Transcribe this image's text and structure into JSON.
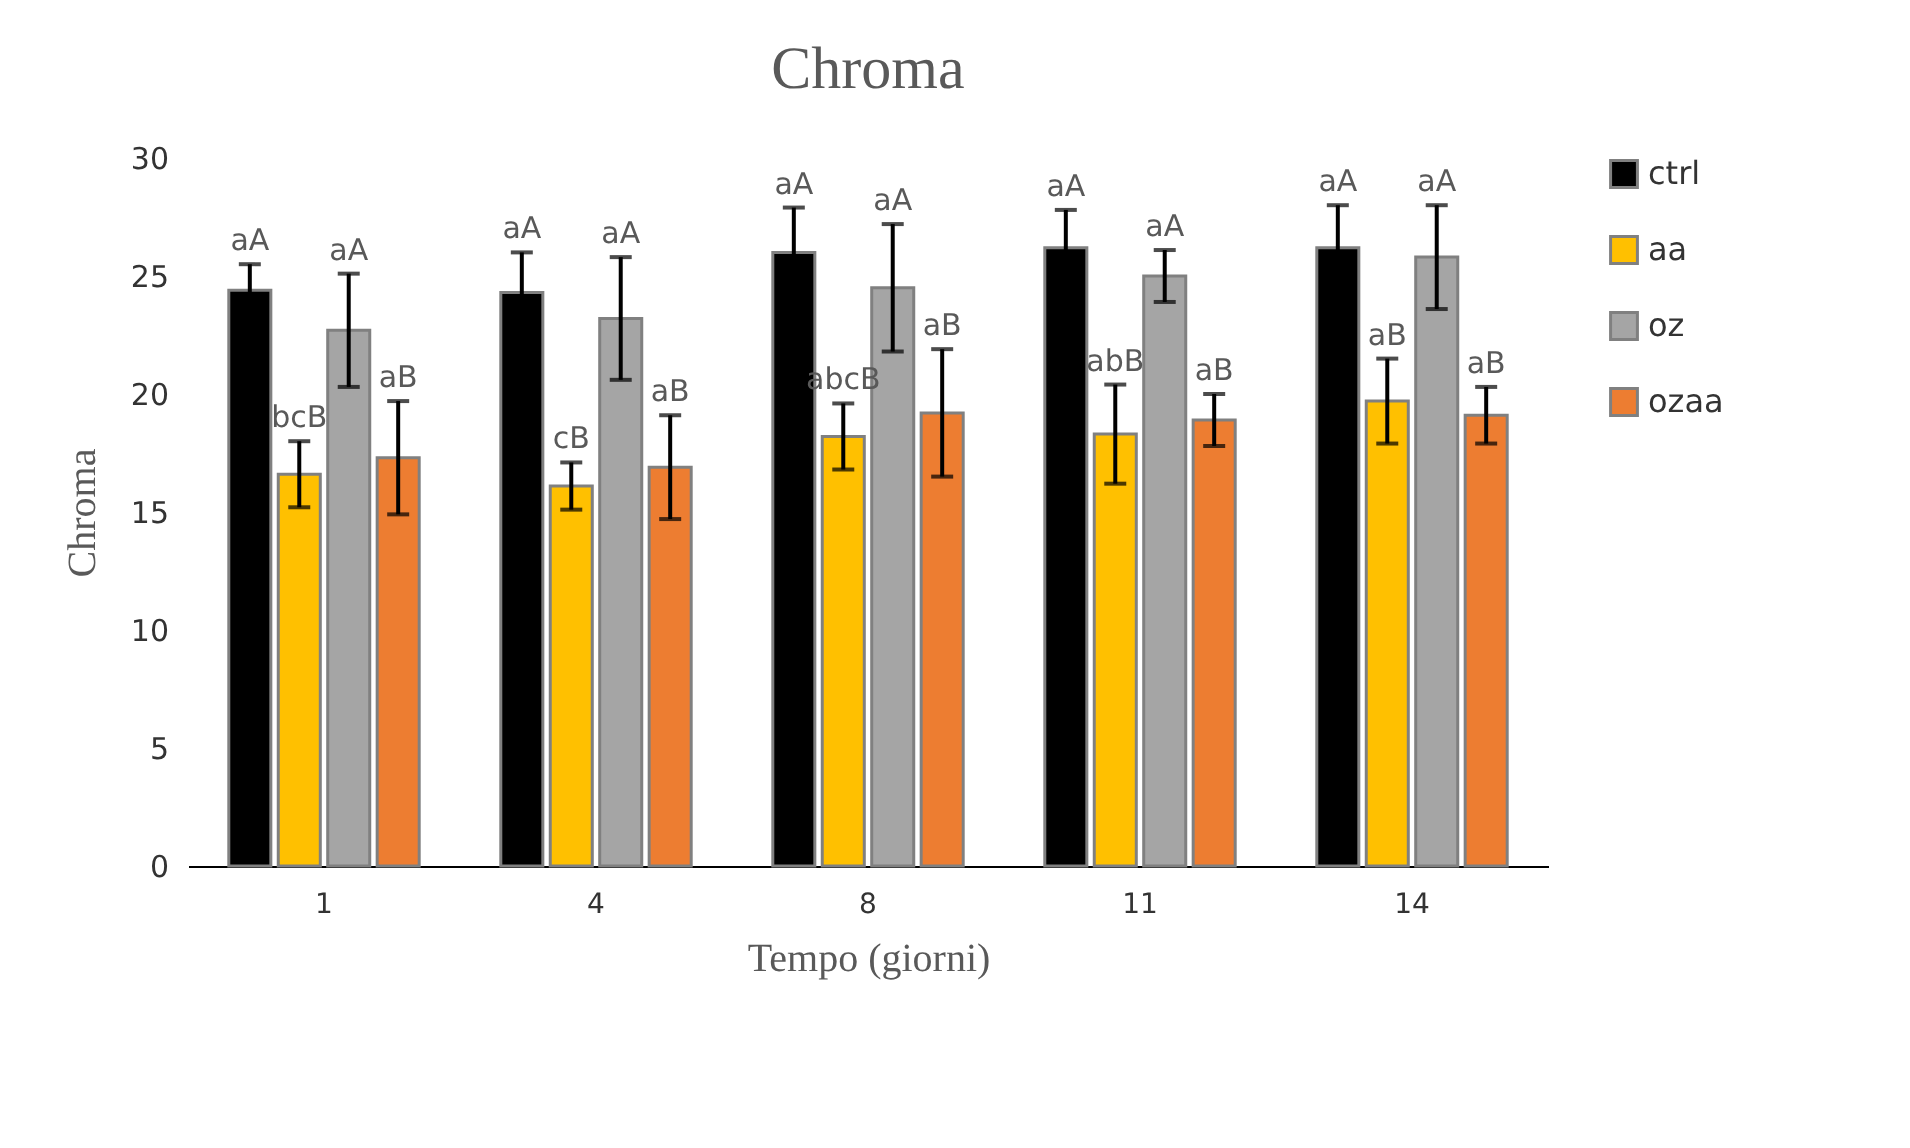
{
  "chart_data": {
    "type": "bar",
    "title": "Chroma",
    "xlabel": "Tempo (giorni)",
    "ylabel": "Chroma",
    "categories": [
      "1",
      "4",
      "8",
      "11",
      "14"
    ],
    "series": [
      {
        "name": "ctrl",
        "color": "#000000",
        "values": [
          24.4,
          24.3,
          26.0,
          26.2,
          26.2
        ],
        "errors": [
          1.1,
          1.7,
          1.9,
          1.6,
          1.8
        ],
        "value_labels": [
          "aA",
          "aA",
          "aA",
          "aA",
          "aA"
        ]
      },
      {
        "name": "aa",
        "color": "#ffc000",
        "values": [
          16.6,
          16.1,
          18.2,
          18.3,
          19.7
        ],
        "errors": [
          1.4,
          1.0,
          1.4,
          2.1,
          1.8
        ],
        "value_labels": [
          "bcB",
          "cB",
          "abcB",
          "abB",
          "aB"
        ]
      },
      {
        "name": "oz",
        "color": "#a5a5a5",
        "values": [
          22.7,
          23.2,
          24.5,
          25.0,
          25.8
        ],
        "errors": [
          2.4,
          2.6,
          2.7,
          1.1,
          2.2
        ],
        "value_labels": [
          "aA",
          "aA",
          "aA",
          "aA",
          "aA"
        ]
      },
      {
        "name": "ozaa",
        "color": "#ed7d31",
        "values": [
          17.3,
          16.9,
          19.2,
          18.9,
          19.1
        ],
        "errors": [
          2.4,
          2.2,
          2.7,
          1.1,
          1.2
        ],
        "value_labels": [
          "aB",
          "aB",
          "aB",
          "aB",
          "aB"
        ]
      }
    ],
    "ylim": [
      0,
      30
    ],
    "yticks": [
      0,
      5,
      10,
      15,
      20,
      25,
      30
    ],
    "grid": false,
    "legend": "right"
  }
}
